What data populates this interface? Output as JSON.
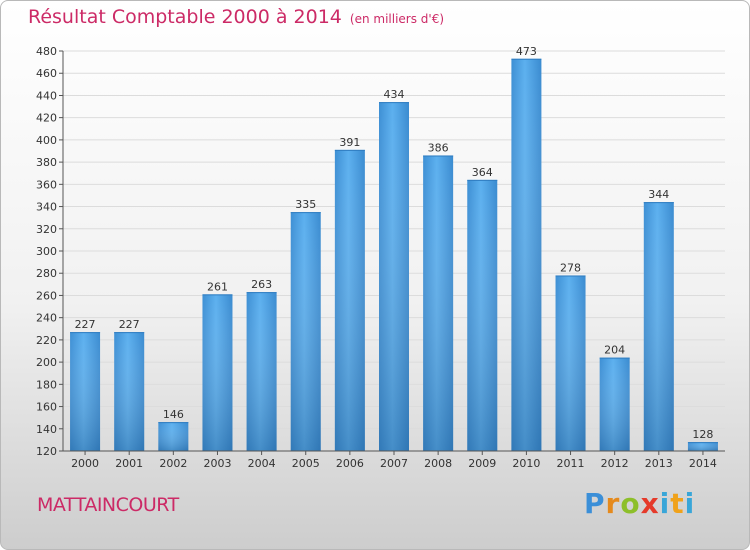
{
  "title": "Résultat Comptable 2000 à 2014",
  "subtitle": "(en milliers d'€)",
  "city": "MATTAINCOURT",
  "logo": {
    "p": "P",
    "r": "r",
    "o": "o",
    "x": "x",
    "i": "i",
    "t": "t",
    "i2": "i"
  },
  "chart_data": {
    "type": "bar",
    "title": "Résultat Comptable 2000 à 2014",
    "subtitle": "(en milliers d'€)",
    "xlabel": "",
    "ylabel": "",
    "categories": [
      "2000",
      "2001",
      "2002",
      "2003",
      "2004",
      "2005",
      "2006",
      "2007",
      "2008",
      "2009",
      "2010",
      "2011",
      "2012",
      "2013",
      "2014"
    ],
    "values": [
      227,
      227,
      146,
      261,
      263,
      335,
      391,
      434,
      386,
      364,
      473,
      278,
      204,
      344,
      128
    ],
    "ylim": [
      120,
      480
    ],
    "yticks": [
      120,
      140,
      160,
      180,
      200,
      220,
      240,
      260,
      280,
      300,
      320,
      340,
      360,
      380,
      400,
      420,
      440,
      460,
      480
    ],
    "grid": true,
    "bar_color": "#4a9fe0"
  }
}
